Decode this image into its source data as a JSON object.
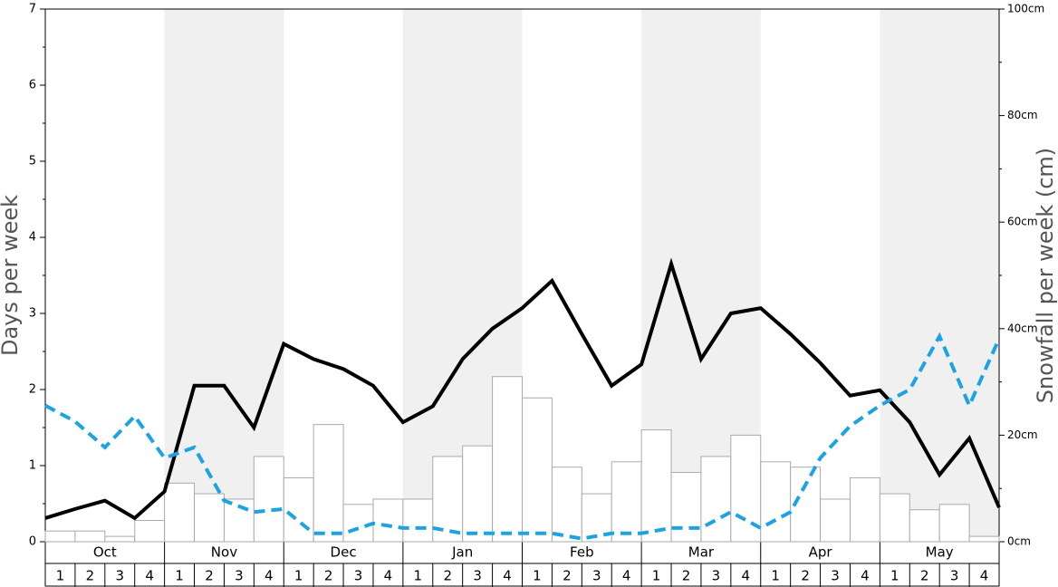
{
  "chart_data": {
    "type": "combo",
    "y_label": "Days per week",
    "y2_label": "Snowfall per week (cm)",
    "groups": [
      "Oct",
      "Nov",
      "Dec",
      "Jan",
      "Feb",
      "Mar",
      "Apr",
      "May"
    ],
    "categories": [
      1,
      2,
      3,
      4,
      1,
      2,
      3,
      4,
      1,
      2,
      3,
      4,
      1,
      2,
      3,
      4,
      1,
      2,
      3,
      4,
      1,
      2,
      3,
      4,
      1,
      2,
      3,
      4,
      1,
      2,
      3,
      4
    ],
    "band_color": "#f0f0f0",
    "ylim": [
      0,
      7
    ],
    "yticks": [
      0,
      1,
      2,
      3,
      4,
      5,
      6,
      7
    ],
    "yminorticks": [
      0.5,
      1.5,
      2.5,
      3.5,
      4.5,
      5.5,
      6.5
    ],
    "y2lim": [
      0,
      100
    ],
    "y2ticks": [
      {
        "value": 0,
        "label": "0cm"
      },
      {
        "value": 20,
        "label": "20cm"
      },
      {
        "value": 40,
        "label": "40cm"
      },
      {
        "value": 60,
        "label": "60cm"
      },
      {
        "value": 80,
        "label": "80cm"
      },
      {
        "value": 100,
        "label": "100cm"
      }
    ],
    "y2minorticks": [
      10,
      30,
      50,
      70,
      90
    ],
    "series": [
      {
        "type": "bar",
        "axis": "y2",
        "color": "#ffffff",
        "stroke": "#aaaaaa",
        "values": [
          2,
          2,
          1,
          4,
          11,
          9,
          8,
          16,
          12,
          22,
          7,
          8,
          8,
          16,
          18,
          31,
          27,
          14,
          9,
          15,
          21,
          13,
          16,
          20,
          15,
          14,
          8,
          12,
          9,
          6,
          7,
          1
        ]
      },
      {
        "type": "line",
        "color": "#000000",
        "dashed": false,
        "x": [
          0,
          1,
          2,
          3,
          4,
          5,
          6,
          7,
          8,
          9,
          10,
          11,
          12,
          13,
          14,
          15,
          16,
          17,
          18,
          19,
          20,
          21,
          22,
          23,
          24,
          25,
          26,
          27,
          28,
          29,
          30,
          31,
          32
        ],
        "values": [
          0.31,
          0.43,
          0.54,
          0.31,
          0.66,
          2.05,
          2.05,
          1.5,
          2.6,
          2.4,
          2.27,
          2.05,
          1.57,
          1.78,
          2.4,
          2.8,
          3.07,
          3.43,
          2.73,
          2.05,
          2.33,
          3.65,
          2.4,
          3.0,
          3.07,
          2.73,
          2.35,
          1.92,
          1.99,
          1.57,
          0.88,
          1.36,
          0.45
        ]
      },
      {
        "type": "line",
        "color": "#1ea3e2",
        "dashed": true,
        "x": [
          0,
          1,
          2,
          3,
          4,
          5,
          6,
          7,
          8,
          9,
          10,
          11,
          12,
          13,
          14,
          15,
          16,
          17,
          18,
          19,
          20,
          21,
          22,
          23,
          24,
          25,
          26,
          27,
          28,
          29,
          30,
          31,
          32
        ],
        "values": [
          1.79,
          1.58,
          1.24,
          1.65,
          1.1,
          1.24,
          0.54,
          0.39,
          0.43,
          0.11,
          0.11,
          0.24,
          0.18,
          0.18,
          0.11,
          0.11,
          0.11,
          0.11,
          0.04,
          0.11,
          0.11,
          0.18,
          0.18,
          0.39,
          0.18,
          0.39,
          1.1,
          1.52,
          1.79,
          2.0,
          2.7,
          1.79,
          2.67
        ]
      }
    ]
  }
}
